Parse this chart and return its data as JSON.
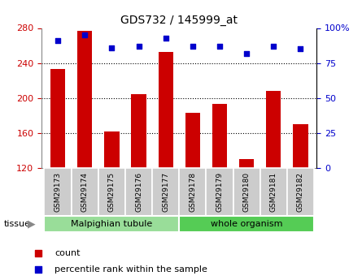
{
  "title": "GDS732 / 145999_at",
  "samples": [
    "GSM29173",
    "GSM29174",
    "GSM29175",
    "GSM29176",
    "GSM29177",
    "GSM29178",
    "GSM29179",
    "GSM29180",
    "GSM29181",
    "GSM29182"
  ],
  "counts": [
    233,
    277,
    162,
    204,
    253,
    183,
    193,
    130,
    208,
    170
  ],
  "percentiles": [
    91,
    95,
    86,
    87,
    93,
    87,
    87,
    82,
    87,
    85
  ],
  "ylim_left": [
    120,
    280
  ],
  "ylim_right": [
    0,
    100
  ],
  "yticks_left": [
    120,
    160,
    200,
    240,
    280
  ],
  "yticks_right": [
    0,
    25,
    50,
    75,
    100
  ],
  "ytick_right_labels": [
    "0",
    "25",
    "50",
    "75",
    "100%"
  ],
  "bar_color": "#cc0000",
  "square_color": "#0000cc",
  "tissue_groups": [
    {
      "label": "Malpighian tubule",
      "start": 0,
      "end": 5,
      "color": "#99dd99"
    },
    {
      "label": "whole organism",
      "start": 5,
      "end": 10,
      "color": "#55cc55"
    }
  ],
  "tissue_label": "tissue",
  "legend_count_label": "count",
  "legend_percentile_label": "percentile rank within the sample",
  "bar_color_left": "#cc0000",
  "bar_color_right": "#0000cc",
  "bar_bottom": 120,
  "tickbox_color": "#cccccc",
  "plot_bg": "#ffffff",
  "outer_border_color": "#888888"
}
